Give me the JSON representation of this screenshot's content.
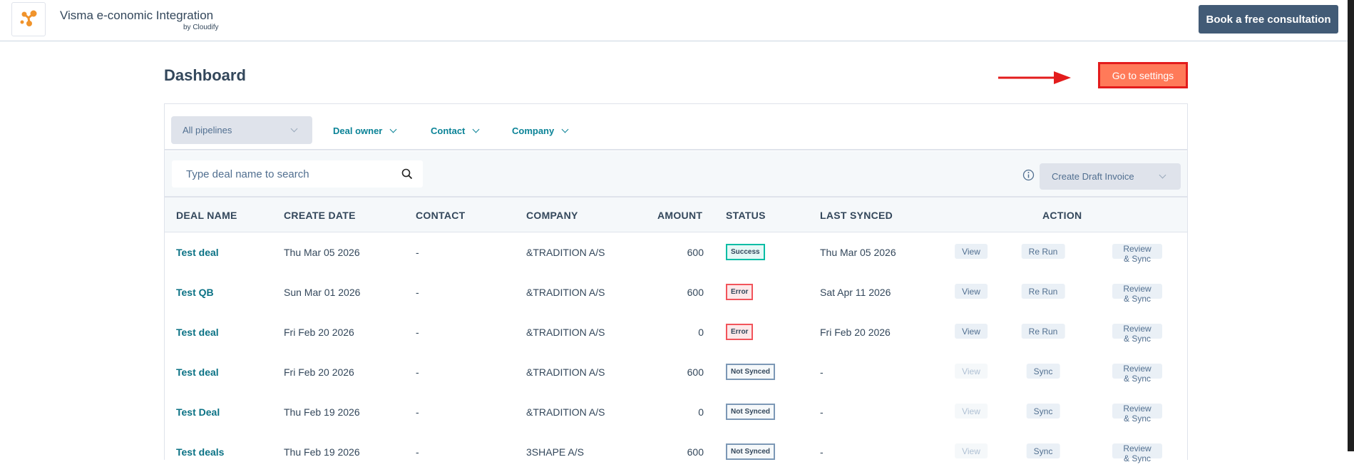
{
  "header": {
    "app_title": "Visma e-conomic Integration",
    "app_subtitle": "by Cloudify",
    "book_button": "Book a free consultation"
  },
  "page": {
    "title": "Dashboard",
    "settings_button": "Go to settings"
  },
  "filters": {
    "pipeline": "All pipelines",
    "deal_owner": "Deal owner",
    "contact": "Contact",
    "company": "Company"
  },
  "toolbar": {
    "search_placeholder": "Type deal name to search",
    "draft_select": "Create Draft Invoice"
  },
  "table": {
    "columns": [
      "DEAL NAME",
      "CREATE DATE",
      "CONTACT",
      "COMPANY",
      "AMOUNT",
      "STATUS",
      "LAST SYNCED",
      "ACTION"
    ],
    "rows": [
      {
        "deal": "Test deal",
        "created": "Thu Mar 05 2026",
        "contact": "-",
        "company": "&TRADITION A/S",
        "amount": "600",
        "status": "Success",
        "last_synced": "Thu Mar 05 2026",
        "actions": [
          "View",
          "Re Run",
          "Review & Sync"
        ],
        "view_enabled": true
      },
      {
        "deal": "Test QB",
        "created": "Sun Mar 01 2026",
        "contact": "-",
        "company": "&TRADITION A/S",
        "amount": "600",
        "status": "Error",
        "last_synced": "Sat Apr 11 2026",
        "actions": [
          "View",
          "Re Run",
          "Review & Sync"
        ],
        "view_enabled": true
      },
      {
        "deal": "Test deal",
        "created": "Fri Feb 20 2026",
        "contact": "-",
        "company": "&TRADITION A/S",
        "amount": "0",
        "status": "Error",
        "last_synced": "Fri Feb 20 2026",
        "actions": [
          "View",
          "Re Run",
          "Review & Sync"
        ],
        "view_enabled": true
      },
      {
        "deal": "Test deal",
        "created": "Fri Feb 20 2026",
        "contact": "-",
        "company": "&TRADITION A/S",
        "amount": "600",
        "status": "Not Synced",
        "last_synced": "-",
        "actions": [
          "View",
          "Sync",
          "Review & Sync"
        ],
        "view_enabled": false
      },
      {
        "deal": "Test Deal",
        "created": "Thu Feb 19 2026",
        "contact": "-",
        "company": "&TRADITION A/S",
        "amount": "0",
        "status": "Not Synced",
        "last_synced": "-",
        "actions": [
          "View",
          "Sync",
          "Review & Sync"
        ],
        "view_enabled": false
      },
      {
        "deal": "Test deals",
        "created": "Thu Feb 19 2026",
        "contact": "-",
        "company": "3SHAPE A/S",
        "amount": "600",
        "status": "Not Synced",
        "last_synced": "-",
        "actions": [
          "View",
          "Sync",
          "Review & Sync"
        ],
        "view_enabled": false
      }
    ]
  },
  "colors": {
    "brand_orange": "#ff7a59",
    "annotation_red": "#e31c1c",
    "primary_dark": "#425b76",
    "link_teal": "#0b7285",
    "success": "#00bda5",
    "error": "#f2545b",
    "not_synced": "#7c98b6"
  }
}
